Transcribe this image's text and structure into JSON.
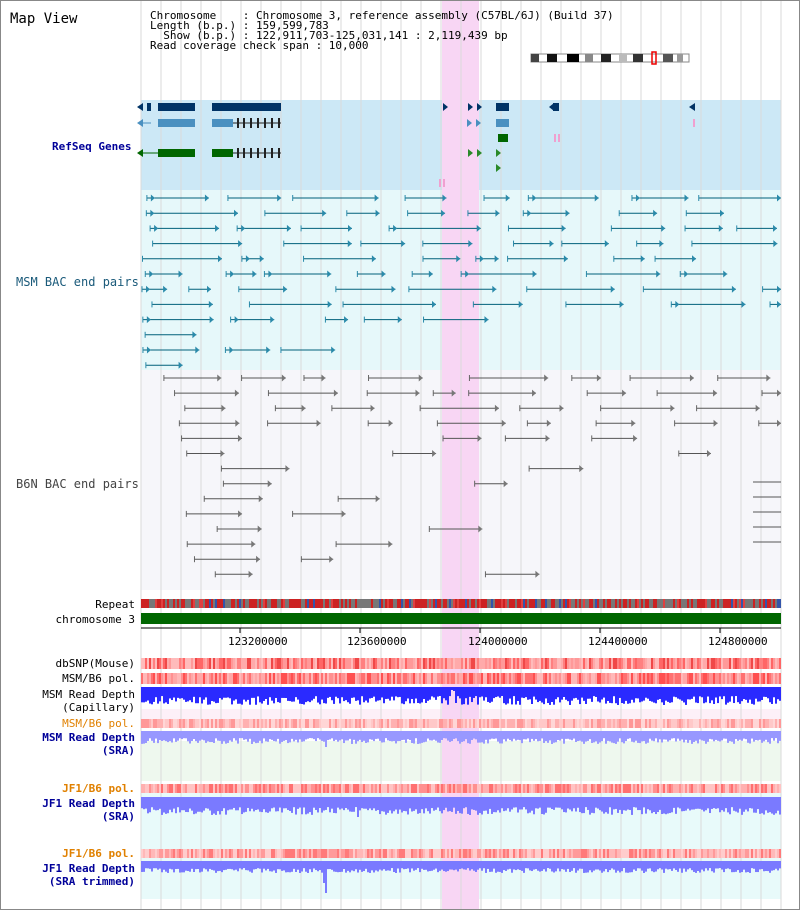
{
  "title": "Map View",
  "info": {
    "chromosome": "Chromosome    : Chromosome 3, reference assembly (C57BL/6J) (Build 37)",
    "length": "Length (b.p.) : 159,599,783",
    "show": "  Show (b.p.) : 122,911,703-125,031,141 : 2,119,439 bp",
    "coverage": "Read coverage check span : 10,000"
  },
  "tracks": {
    "refseq": "RefSeq Genes",
    "msm_bac": "MSM BAC end pairs",
    "b6n_bac": "B6N BAC end pairs",
    "repeat": "Repeat",
    "chromosome": "chromosome 3",
    "dbsnp": "dbSNP(Mouse)",
    "msm_pol": "MSM/B6 pol.",
    "msm_depth_cap_1": "MSM Read Depth",
    "msm_depth_cap_2": "(Capillary)",
    "msm_pol2": "MSM/B6 pol.",
    "msm_depth_sra_1": "MSM Read Depth",
    "msm_depth_sra_2": "(SRA)",
    "jf1_pol": "JF1/B6 pol.",
    "jf1_depth_sra_1": "JF1 Read Depth",
    "jf1_depth_sra_2": "(SRA)",
    "jf1_pol2": "JF1/B6 pol.",
    "jf1_depth_trim_1": "JF1 Read Depth",
    "jf1_depth_trim_2": "(SRA trimmed)"
  },
  "axis_ticks": [
    "123200000",
    "123600000",
    "124000000",
    "124400000",
    "124800000"
  ],
  "colors": {
    "refseq_bg": "#cce8f6",
    "msm_bac_bg": "#e6f8fa",
    "b6n_bac_bg": "#f6f6fa",
    "highlight": "#f8d6f4",
    "navy": "#003366",
    "steel": "#4a90c0",
    "green": "#006600",
    "teal": "#00607a",
    "grey": "#555555",
    "depth_blue": "#1a1aff",
    "depth_light": "#8c8cff",
    "label_blue": "#000099",
    "label_orange": "#e08000",
    "label_teal": "#1a5a7a"
  }
}
